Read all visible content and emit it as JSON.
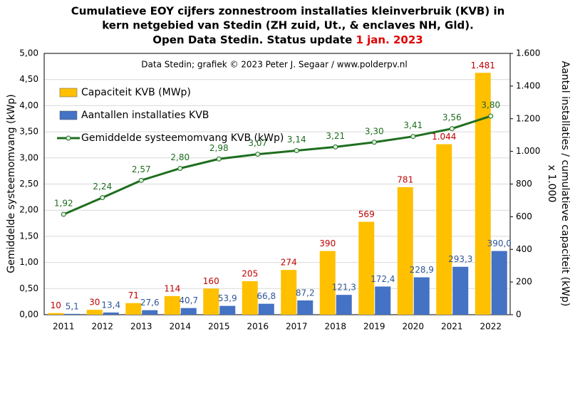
{
  "chart_data": {
    "type": "bar_line",
    "title": [
      "Cumulatieve EOY cijfers zonnestroom installaties kleinverbruik (KVB) in",
      "kern netgebied van Stedin (ZH zuid, Ut., & enclaves NH, Gld).",
      "Open Data Stedin. Status update "
    ],
    "title_highlight": "1 jan. 2023",
    "annotation": "Data Stedin; grafiek © 2023 Peter J. Segaar / www.polderpv.nl",
    "ylabel": "Gemiddelde systeemomvang (kWp)",
    "y2label": "Aantal installaties / cumulatieve capaciteit (kWp)",
    "y2label_sub": "x 1.000",
    "categories": [
      "2011",
      "2012",
      "2013",
      "2014",
      "2015",
      "2016",
      "2017",
      "2018",
      "2019",
      "2020",
      "2021",
      "2022"
    ],
    "ylim": [
      0,
      5
    ],
    "yticks": [
      {
        "value": 0,
        "label": "0,00"
      },
      {
        "value": 0.5,
        "label": "0,50"
      },
      {
        "value": 1,
        "label": "1,00"
      },
      {
        "value": 1.5,
        "label": "1,50"
      },
      {
        "value": 2,
        "label": "2,00"
      },
      {
        "value": 2.5,
        "label": "2,50"
      },
      {
        "value": 3,
        "label": "3,00"
      },
      {
        "value": 3.5,
        "label": "3,50"
      },
      {
        "value": 4,
        "label": "4,00"
      },
      {
        "value": 4.5,
        "label": "4,50"
      },
      {
        "value": 5,
        "label": "5,00"
      }
    ],
    "y2lim": [
      0,
      1600
    ],
    "y2ticks": [
      0,
      200,
      400,
      600,
      800,
      {
        "value": 1000,
        "label": "1.000"
      },
      {
        "value": 1200,
        "label": "1.200"
      },
      {
        "value": 1400,
        "label": "1.400"
      },
      {
        "value": 1600,
        "label": "1.600"
      }
    ],
    "grid": true,
    "legend": "upper left",
    "series": [
      {
        "name": "Capaciteit KVB (MWp)",
        "kind": "bar",
        "axis": "y2",
        "color": "#ffc000",
        "label_color": "#c00000",
        "values": [
          10,
          30,
          71,
          114,
          160,
          205,
          274,
          390,
          569,
          781,
          1044,
          1481
        ],
        "value_labels": [
          "10",
          "30",
          "71",
          "114",
          "160",
          "205",
          "274",
          "390",
          "569",
          "781",
          "1.044",
          "1.481"
        ]
      },
      {
        "name": "Aantallen installaties KVB",
        "kind": "bar",
        "axis": "y2",
        "color": "#4472c4",
        "label_color": "#2f5597",
        "values": [
          5.1,
          13.4,
          27.6,
          40.7,
          53.9,
          66.8,
          87.2,
          121.3,
          172.4,
          228.9,
          293.3,
          390.0
        ],
        "value_labels": [
          "5,1",
          "13,4",
          "27,6",
          "40,7",
          "53,9",
          "66,8",
          "87,2",
          "121,3",
          "172,4",
          "228,9",
          "293,3",
          "390,0"
        ]
      },
      {
        "name": "Gemiddelde systeemomvang KVB (kWp)",
        "kind": "line",
        "axis": "y",
        "color": "#1e6e1e",
        "label_color": "#1e6e1e",
        "values": [
          1.92,
          2.24,
          2.57,
          2.8,
          2.98,
          3.07,
          3.14,
          3.21,
          3.3,
          3.41,
          3.56,
          3.8
        ],
        "value_labels": [
          "1,92",
          "2,24",
          "2,57",
          "2,80",
          "2,98",
          "3,07",
          "3,14",
          "3,21",
          "3,30",
          "3,41",
          "3,56",
          "3,80"
        ]
      }
    ]
  }
}
